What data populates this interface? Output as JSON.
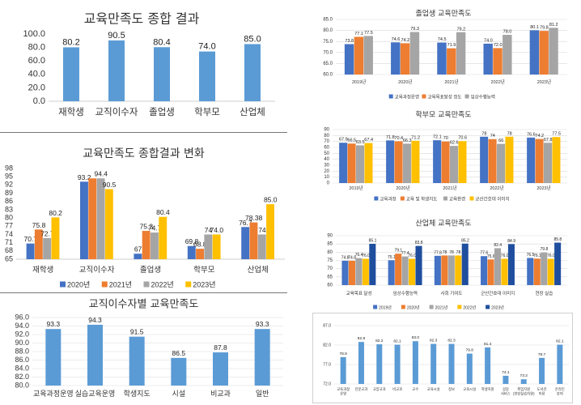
{
  "chart_data": [
    {
      "id": "c1",
      "type": "bar",
      "title": "교육만족도 종합 결과",
      "categories": [
        "재학생",
        "교직이수자",
        "졸업생",
        "학부모",
        "산업체"
      ],
      "series": [
        {
          "values": [
            80.2,
            90.5,
            80.4,
            74.0,
            85.0
          ],
          "color": "#5B9BD5"
        }
      ],
      "data_labels": [
        "80.2",
        "90.5",
        "80.4",
        "74.0",
        "85.0"
      ],
      "y_ticks": [
        "100.0",
        "80.0",
        "60.0",
        "40.0",
        "20.0",
        "0.0"
      ],
      "ylim": [
        0,
        100
      ],
      "grid": false,
      "legend": "none"
    },
    {
      "id": "c2",
      "type": "bar",
      "title": "교육만족도 종합결과 변화",
      "categories": [
        "재학생",
        "교직이수자",
        "졸업생",
        "학부모",
        "산업체"
      ],
      "series": [
        {
          "name": "2020년",
          "values": [
            70.7,
            93.2,
            67.0,
            69.8,
            76.7
          ],
          "color": "#4472C4"
        },
        {
          "name": "2021년",
          "values": [
            75.8,
            94.4,
            75.3,
            68.8,
            78.38
          ],
          "color": "#ED7D31"
        },
        {
          "name": "2022년",
          "values": [
            72.7,
            94.4,
            74.7,
            74.0,
            74.0
          ],
          "color": "#A5A5A5"
        },
        {
          "name": "2023년",
          "values": [
            80.2,
            90.5,
            80.4,
            74.0,
            85.0
          ],
          "color": "#FFC000"
        }
      ],
      "data_labels": [
        [
          "70.7",
          "75.8",
          "72.7",
          "80.2"
        ],
        [
          "93.2",
          "",
          "94.4",
          "90.5"
        ],
        [
          "67",
          "75.3",
          "74.7",
          "80.4"
        ],
        [
          "69.8",
          "68.8",
          "74",
          "74.0"
        ],
        [
          "76.7",
          "78.38",
          "74",
          "85.0"
        ]
      ],
      "y_ticks": [
        "98",
        "95",
        "92",
        "89",
        "86",
        "83",
        "80",
        "77",
        "74",
        "71",
        "68",
        "65"
      ],
      "ylim": [
        65,
        98
      ],
      "grid": false,
      "legend": "bottom"
    },
    {
      "id": "c3",
      "type": "bar",
      "title": "교직이수자별 교육만족도",
      "categories": [
        "교육과정운영",
        "실습교육운영",
        "학생지도",
        "시설",
        "비교과",
        "일반"
      ],
      "series": [
        {
          "values": [
            93.3,
            94.3,
            91.5,
            86.5,
            87.8,
            93.3
          ],
          "color": "#5B9BD5"
        }
      ],
      "data_labels": [
        "93.3",
        "94.3",
        "91.5",
        "86.5",
        "87.8",
        "93.3"
      ],
      "y_ticks": [
        "96.0",
        "94.0",
        "92.0",
        "90.0",
        "88.0",
        "86.0",
        "84.0",
        "82.0",
        "80.0"
      ],
      "ylim": [
        80,
        96
      ],
      "grid": true,
      "legend": "none"
    },
    {
      "id": "c4",
      "type": "bar",
      "title": "졸업생 교육만족도",
      "categories": [
        "2019년",
        "2020년",
        "2021년",
        "2022년",
        "2023년"
      ],
      "series": [
        {
          "name": "교육과정운영",
          "values": [
            73.8,
            74.6,
            74.5,
            74.0,
            80.1
          ],
          "color": "#4472C4"
        },
        {
          "name": "교육목표달성 정도",
          "values": [
            77.1,
            74.2,
            71.9,
            72.0,
            79.8
          ],
          "color": "#ED7D31"
        },
        {
          "name": "임상수행능력",
          "values": [
            77.5,
            79.3,
            79.2,
            78.0,
            81.2
          ],
          "color": "#A5A5A5"
        }
      ],
      "data_labels": [
        [
          "73.8",
          "77.1",
          "77.5"
        ],
        [
          "74.6",
          "74.2",
          "79.3"
        ],
        [
          "74.5",
          "71.9",
          "79.2"
        ],
        [
          "74.0",
          "72.0",
          "78.0"
        ],
        [
          "80.1",
          "79.8",
          "81.2"
        ]
      ],
      "y_ticks": [
        "85.0",
        "80.0",
        "75.0",
        "70.0",
        "65.0",
        "60.0"
      ],
      "ylim": [
        60,
        85
      ],
      "grid": true,
      "legend": "bottom"
    },
    {
      "id": "c5",
      "type": "bar",
      "title": "학부모 교육만족도",
      "categories": [
        "2019년",
        "2020년",
        "2021년",
        "2022년",
        "2023년"
      ],
      "series": [
        {
          "name": "교육과정",
          "values": [
            67.9,
            71.8,
            72.1,
            78.0,
            76.6
          ],
          "color": "#4472C4"
        },
        {
          "name": "교육 및 학생지도",
          "values": [
            66.5,
            70.4,
            70.0,
            74.0,
            74.2
          ],
          "color": "#ED7D31"
        },
        {
          "name": "교육환경",
          "values": [
            63.5,
            66.3,
            62.6,
            66.0,
            67.8
          ],
          "color": "#A5A5A5"
        },
        {
          "name": "군산간호대 이미지",
          "values": [
            67.4,
            71.2,
            70.6,
            78.0,
            77.5
          ],
          "color": "#FFC000"
        }
      ],
      "data_labels": [
        [
          "67.9",
          "66.5",
          "63.5",
          "67.4"
        ],
        [
          "71.8",
          "70.4",
          "66.3",
          "71.2"
        ],
        [
          "72.1",
          "70",
          "62.6",
          "70.6"
        ],
        [
          "78",
          "74",
          "66",
          "78"
        ],
        [
          "76.6",
          "74.2",
          "67.8",
          "77.5"
        ]
      ],
      "y_ticks": [
        "90",
        "80",
        "70",
        "60",
        "50",
        "40",
        "30",
        "20",
        "10",
        "0"
      ],
      "ylim": [
        0,
        90
      ],
      "grid": true,
      "legend": "bottom"
    },
    {
      "id": "c6",
      "type": "bar",
      "title": "산업체 교육만족도",
      "categories": [
        "교육목표 달성",
        "임상수행능력",
        "사회 기여도",
        "군산간호대 이미지",
        "현장 실습"
      ],
      "series": [
        {
          "name": "2019년",
          "values": [
            74.8,
            75.1,
            77.8,
            77.6,
            76.5
          ],
          "color": "#4472C4"
        },
        {
          "name": "2020년",
          "values": [
            74.8,
            79.1,
            78.0,
            75.6,
            76.1
          ],
          "color": "#ED7D31"
        },
        {
          "name": "2021년",
          "values": [
            76.4,
            77.4,
            78.0,
            82.4,
            79.8
          ],
          "color": "#A5A5A5"
        },
        {
          "name": "2022년",
          "values": [
            76.0,
            76.0,
            78.0,
            76.0,
            76.0
          ],
          "color": "#FFC000"
        },
        {
          "name": "2023년",
          "values": [
            85.1,
            83.8,
            85.2,
            84.9,
            85.8
          ],
          "color": "#1F4E9E"
        }
      ],
      "data_labels": [
        [
          "74.8",
          "74.8",
          "76.4",
          "76.0",
          "85.1"
        ],
        [
          "75.1",
          "79.1",
          "77.4",
          "76.0",
          "83.8"
        ],
        [
          "77.8",
          "78",
          "78",
          "78",
          "85.2"
        ],
        [
          "77.6",
          "75.6",
          "82.4",
          "76.0",
          "84.9"
        ],
        [
          "76.5",
          "76.1",
          "79.8",
          "76.0",
          "85.8"
        ]
      ],
      "y_ticks": [
        "90",
        "85",
        "80",
        "75",
        "70",
        "65",
        "60"
      ],
      "ylim": [
        60,
        90
      ],
      "grid": true,
      "legend": "bottom"
    },
    {
      "id": "c7",
      "type": "bar",
      "title": "",
      "categories": [
        "교육과정 운영",
        "전문교과",
        "교양교과",
        "비교과",
        "교수",
        "교육시설",
        "정보",
        "교육시설",
        "학생지원",
        "상담 서비스",
        "취업지원 (현장실습지원)",
        "도서관 이용",
        "온라인 강의"
      ],
      "series": [
        {
          "values": [
            78.9,
            82.8,
            82.2,
            82.1,
            83.0,
            82.3,
            82.3,
            79.8,
            81.4,
            74.1,
            73.2,
            78.7,
            82.1
          ],
          "color": "#5B9BD5"
        }
      ],
      "data_labels": [
        "78.9",
        "82.8",
        "82.2",
        "82.1",
        "83.0",
        "82.3",
        "82.3",
        "79.8",
        "81.4",
        "74.1",
        "73.2",
        "78.7",
        "82.1"
      ],
      "y_ticks": [
        "87.0",
        "82.0",
        "77.0",
        "72.0"
      ],
      "ylim": [
        72,
        87
      ],
      "grid": true,
      "legend": "none"
    }
  ]
}
